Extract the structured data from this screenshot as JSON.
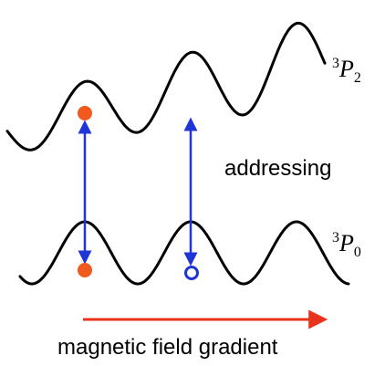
{
  "labels": {
    "upper_level": {
      "superscript": "3",
      "symbol": "P",
      "subscript": "2"
    },
    "lower_level": {
      "superscript": "3",
      "symbol": "P",
      "subscript": "0"
    },
    "addressing": "addressing",
    "gradient": "magnetic field gradient"
  },
  "colors": {
    "potential": "#000000",
    "transition_arrow": "#1f35d6",
    "atom": "#f05a1e",
    "empty_site": "#1f35d6",
    "gradient_arrow": "#e8341c"
  },
  "elements": {
    "upper_potential": "tilted-lattice-curve",
    "lower_potential": "lattice-curve",
    "filled_atoms": 2,
    "empty_sites": 1,
    "transition_arrows": 2
  }
}
